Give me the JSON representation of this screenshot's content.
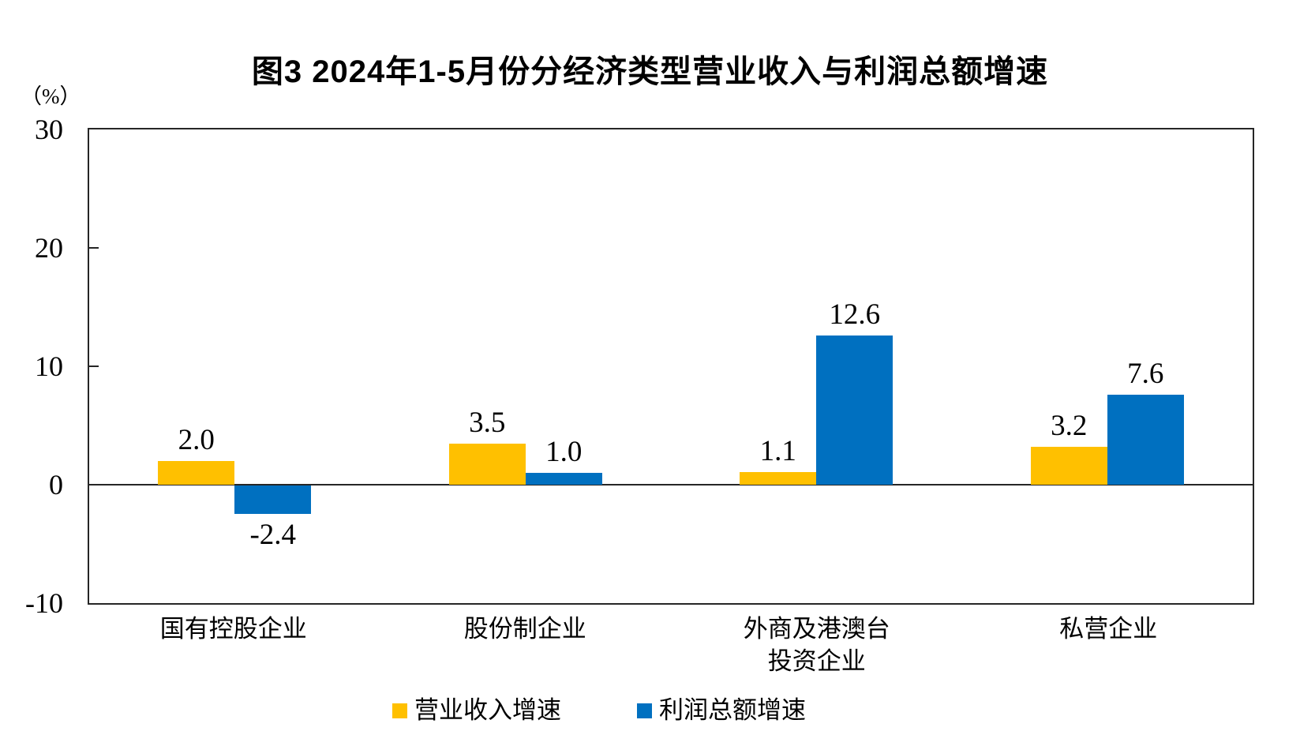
{
  "title": "图3 2024年1-5月份分经济类型营业收入与利润总额增速",
  "axis_unit_label": "（%）",
  "chart_data": {
    "type": "bar",
    "categories": [
      "国有控股企业",
      "股份制企业",
      "外商及港澳台\n投资企业",
      "私营企业"
    ],
    "series": [
      {
        "name": "营业收入增速",
        "color": "#FFC000",
        "values": [
          2.0,
          3.5,
          1.1,
          3.2
        ]
      },
      {
        "name": "利润总额增速",
        "color": "#0070C0",
        "values": [
          -2.4,
          1.0,
          12.6,
          7.6
        ]
      }
    ],
    "ylabel": "（%）",
    "ylim": [
      -10,
      30
    ],
    "yticks": [
      30,
      20,
      10,
      0,
      -10
    ],
    "inner_ticks": [
      20,
      10
    ],
    "grid": false,
    "legend_position": "bottom",
    "value_label_decimals": 1
  },
  "colors": {
    "axis": "#262626",
    "text": "#000000",
    "background": "#ffffff"
  }
}
